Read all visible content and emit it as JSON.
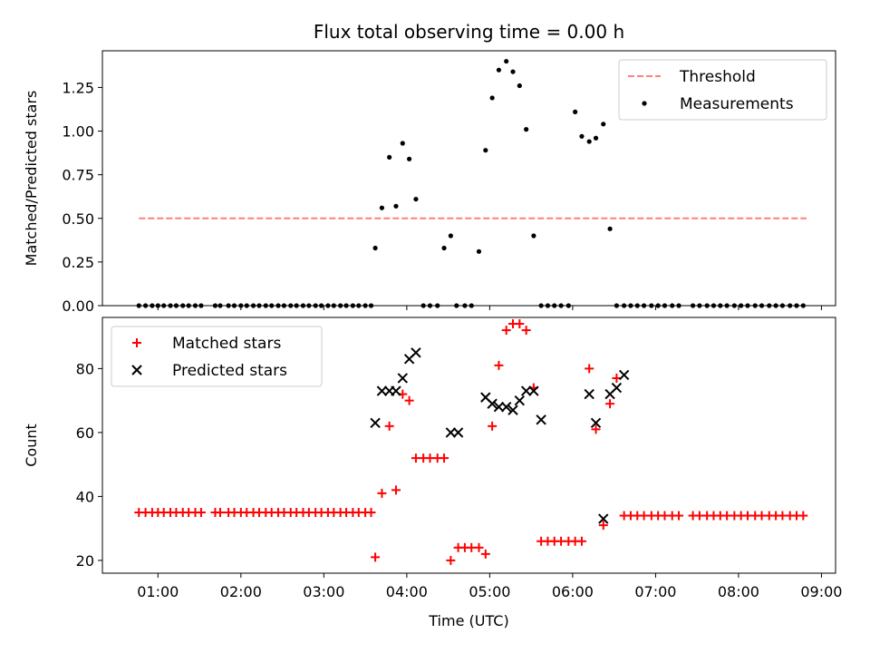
{
  "chart_data": [
    {
      "type": "scatter",
      "title": "Flux total observing time = 0.00 h",
      "xlabel": "",
      "ylabel": "Matched/Predicted stars",
      "xlim": [
        0.33,
        9.17
      ],
      "ylim": [
        0.0,
        1.46
      ],
      "yticks": [
        0.0,
        0.25,
        0.5,
        0.75,
        1.0,
        1.25
      ],
      "ytick_labels": [
        "0.00",
        "0.25",
        "0.50",
        "0.75",
        "1.00",
        "1.25"
      ],
      "xticks": [
        1,
        2,
        3,
        4,
        5,
        6,
        7,
        8,
        9
      ],
      "legend_position": "top-right",
      "series": [
        {
          "name": "Threshold",
          "kind": "line",
          "style": "dashed",
          "color": "#ff7f7f",
          "x": [
            0.77,
            8.82
          ],
          "y": [
            0.5,
            0.5
          ]
        },
        {
          "name": "Measurements",
          "kind": "scatter",
          "marker": "dot",
          "color": "#000000",
          "x": [
            0.77,
            0.85,
            0.93,
            1.0,
            1.07,
            1.15,
            1.22,
            1.3,
            1.37,
            1.45,
            1.52,
            1.69,
            1.75,
            1.85,
            1.92,
            2.0,
            2.07,
            2.15,
            2.22,
            2.3,
            2.37,
            2.45,
            2.52,
            2.6,
            2.67,
            2.75,
            2.82,
            2.9,
            2.97,
            3.05,
            3.12,
            3.2,
            3.27,
            3.35,
            3.42,
            3.5,
            3.57,
            3.62,
            3.7,
            3.79,
            3.87,
            3.95,
            4.03,
            4.11,
            4.2,
            4.28,
            4.37,
            4.45,
            4.53,
            4.6,
            4.7,
            4.78,
            4.87,
            4.95,
            5.03,
            5.11,
            5.2,
            5.28,
            5.36,
            5.44,
            5.53,
            5.62,
            5.7,
            5.78,
            5.86,
            5.95,
            6.03,
            6.11,
            6.2,
            6.28,
            6.37,
            6.45,
            6.53,
            6.62,
            6.7,
            6.78,
            6.86,
            6.95,
            7.03,
            7.11,
            7.2,
            7.28,
            7.45,
            7.53,
            7.62,
            7.7,
            7.78,
            7.86,
            7.95,
            8.03,
            8.11,
            8.2,
            8.28,
            8.37,
            8.45,
            8.53,
            8.62,
            8.7,
            8.78
          ],
          "y": [
            0,
            0,
            0,
            0,
            0,
            0,
            0,
            0,
            0,
            0,
            0,
            0,
            0,
            0,
            0,
            0,
            0,
            0,
            0,
            0,
            0,
            0,
            0,
            0,
            0,
            0,
            0,
            0,
            0,
            0,
            0,
            0,
            0,
            0,
            0,
            0,
            0,
            0.33,
            0.56,
            0.85,
            0.57,
            0.93,
            0.84,
            0.61,
            0,
            0,
            0,
            0.33,
            0.4,
            0,
            0,
            0,
            0.31,
            0.89,
            1.19,
            1.35,
            1.4,
            1.34,
            1.26,
            1.01,
            0.4,
            0,
            0,
            0,
            0,
            0,
            1.11,
            0.97,
            0.94,
            0.96,
            1.04,
            0.44,
            0,
            0,
            0,
            0,
            0,
            0,
            0,
            0,
            0,
            0,
            0,
            0,
            0,
            0,
            0,
            0,
            0,
            0,
            0,
            0,
            0,
            0,
            0,
            0,
            0,
            0,
            0
          ]
        }
      ]
    },
    {
      "type": "scatter",
      "title": "",
      "xlabel": "Time (UTC)",
      "ylabel": "Count",
      "xlim": [
        0.33,
        9.17
      ],
      "ylim": [
        16,
        96
      ],
      "yticks": [
        20,
        40,
        60,
        80
      ],
      "ytick_labels": [
        "20",
        "40",
        "60",
        "80"
      ],
      "xticks": [
        1,
        2,
        3,
        4,
        5,
        6,
        7,
        8,
        9
      ],
      "xtick_labels": [
        "01:00",
        "02:00",
        "03:00",
        "04:00",
        "05:00",
        "06:00",
        "07:00",
        "08:00",
        "09:00"
      ],
      "legend_position": "top-left",
      "series": [
        {
          "name": "Matched stars",
          "kind": "scatter",
          "marker": "plus",
          "color": "#ff0000",
          "x": [
            0.77,
            0.85,
            0.93,
            1.0,
            1.07,
            1.15,
            1.22,
            1.3,
            1.37,
            1.45,
            1.52,
            1.69,
            1.75,
            1.85,
            1.92,
            2.0,
            2.07,
            2.15,
            2.22,
            2.3,
            2.37,
            2.45,
            2.52,
            2.6,
            2.67,
            2.75,
            2.82,
            2.9,
            2.97,
            3.05,
            3.12,
            3.2,
            3.27,
            3.35,
            3.42,
            3.5,
            3.57,
            3.62,
            3.7,
            3.79,
            3.87,
            3.95,
            4.03,
            4.11,
            4.2,
            4.28,
            4.37,
            4.45,
            4.53,
            4.62,
            4.7,
            4.78,
            4.87,
            4.95,
            5.03,
            5.11,
            5.2,
            5.28,
            5.36,
            5.44,
            5.53,
            5.62,
            5.7,
            5.78,
            5.86,
            5.95,
            6.03,
            6.11,
            6.2,
            6.28,
            6.37,
            6.45,
            6.53,
            6.62,
            6.7,
            6.78,
            6.86,
            6.95,
            7.03,
            7.11,
            7.2,
            7.28,
            7.45,
            7.53,
            7.62,
            7.7,
            7.78,
            7.86,
            7.95,
            8.03,
            8.11,
            8.2,
            8.28,
            8.37,
            8.45,
            8.53,
            8.62,
            8.7,
            8.78
          ],
          "y": [
            35,
            35,
            35,
            35,
            35,
            35,
            35,
            35,
            35,
            35,
            35,
            35,
            35,
            35,
            35,
            35,
            35,
            35,
            35,
            35,
            35,
            35,
            35,
            35,
            35,
            35,
            35,
            35,
            35,
            35,
            35,
            35,
            35,
            35,
            35,
            35,
            35,
            21,
            41,
            62,
            42,
            72,
            70,
            52,
            52,
            52,
            52,
            52,
            20,
            24,
            24,
            24,
            24,
            22,
            62,
            81,
            92,
            94,
            94,
            92,
            74,
            26,
            26,
            26,
            26,
            26,
            26,
            26,
            80,
            61,
            31,
            69,
            77,
            34,
            34,
            34,
            34,
            34,
            34,
            34,
            34,
            34,
            34,
            34,
            34,
            34,
            34,
            34,
            34,
            34,
            34,
            34,
            34,
            34,
            34,
            34,
            34,
            34,
            34
          ]
        },
        {
          "name": "Predicted stars",
          "kind": "scatter",
          "marker": "x",
          "color": "#000000",
          "x": [
            3.62,
            3.7,
            3.79,
            3.87,
            3.95,
            4.03,
            4.11,
            4.53,
            4.62,
            4.95,
            5.03,
            5.11,
            5.2,
            5.28,
            5.36,
            5.44,
            5.53,
            5.62,
            6.2,
            6.28,
            6.37,
            6.45,
            6.53,
            6.62
          ],
          "y": [
            63,
            73,
            73,
            73,
            77,
            83,
            85,
            60,
            60,
            71,
            69,
            68,
            68,
            67,
            70,
            73,
            73,
            64,
            72,
            63,
            33,
            72,
            74,
            78
          ]
        }
      ]
    }
  ]
}
